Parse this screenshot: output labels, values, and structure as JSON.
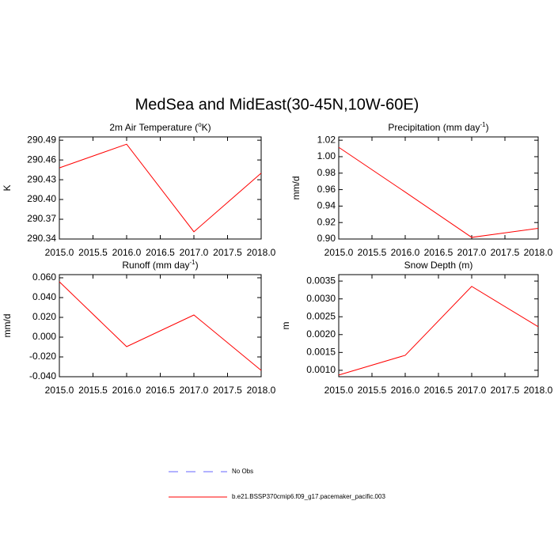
{
  "title": "MedSea and MidEast(30-45N,10W-60E)",
  "legend": [
    {
      "name": "No Obs",
      "color": "#6464ff",
      "dashed": true
    },
    {
      "name": "b.e21.BSSP370cmip6.f09_g17.pacemaker_pacific.003",
      "color": "#ff0000",
      "dashed": false
    }
  ],
  "chart_data": [
    {
      "type": "line",
      "title": [
        "2m Air Temperature (",
        "o",
        "K)"
      ],
      "ylabel": "K",
      "x": [
        2015,
        2016,
        2017,
        2018
      ],
      "values": [
        290.448,
        290.484,
        290.351,
        290.44
      ],
      "color": "#ff0000",
      "xlim": [
        2015,
        2018
      ],
      "ylim": [
        290.34,
        290.495
      ],
      "xticks": [
        {
          "value": 2015,
          "label": "2015.0"
        },
        {
          "value": 2015.5,
          "label": "2015.5"
        },
        {
          "value": 2016,
          "label": "2016.0"
        },
        {
          "value": 2016.5,
          "label": "2016.5"
        },
        {
          "value": 2017,
          "label": "2017.0"
        },
        {
          "value": 2017.5,
          "label": "2017.5"
        },
        {
          "value": 2018,
          "label": "2018.0"
        }
      ],
      "yticks": [
        290.34,
        290.37,
        {
          "value": 290.4,
          "label": "290.40"
        },
        290.43,
        290.46,
        290.49
      ]
    },
    {
      "type": "line",
      "title": [
        "Precipitation (mm day",
        "-1",
        ")"
      ],
      "ylabel": "mm/d",
      "x": [
        2015,
        2016,
        2017,
        2018
      ],
      "values": [
        1.0114,
        0.957,
        0.902,
        0.913
      ],
      "color": "#ff0000",
      "xlim": [
        2015,
        2018
      ],
      "ylim": [
        0.9,
        1.024
      ],
      "xticks": [
        {
          "value": 2015,
          "label": "2015.0"
        },
        {
          "value": 2015.5,
          "label": "2015.5"
        },
        {
          "value": 2016,
          "label": "2016.0"
        },
        {
          "value": 2016.5,
          "label": "2016.5"
        },
        {
          "value": 2017,
          "label": "2017.0"
        },
        {
          "value": 2017.5,
          "label": "2017.5"
        },
        {
          "value": 2018,
          "label": "2018.0"
        }
      ],
      "yticks": [
        {
          "value": 0.9,
          "label": "0.90"
        },
        0.92,
        0.94,
        0.96,
        0.98,
        {
          "value": 1,
          "label": "1.00"
        },
        1.02
      ]
    },
    {
      "type": "line",
      "title": [
        "Runoff (mm day",
        "-1",
        ")"
      ],
      "ylabel": "mm/d",
      "x": [
        2015,
        2016,
        2017,
        2018
      ],
      "values": [
        0.056,
        -0.0096,
        0.0224,
        -0.0336
      ],
      "color": "#ff0000",
      "xlim": [
        2015,
        2018
      ],
      "ylim": [
        -0.04,
        0.0632
      ],
      "xticks": [
        {
          "value": 2015,
          "label": "2015.0"
        },
        {
          "value": 2015.5,
          "label": "2015.5"
        },
        {
          "value": 2016,
          "label": "2016.0"
        },
        {
          "value": 2016.5,
          "label": "2016.5"
        },
        {
          "value": 2017,
          "label": "2017.0"
        },
        {
          "value": 2017.5,
          "label": "2017.5"
        },
        {
          "value": 2018,
          "label": "2018.0"
        }
      ],
      "yticks": [
        {
          "value": -0.04,
          "label": "-0.040"
        },
        {
          "value": -0.02,
          "label": "-0.020"
        },
        {
          "value": 0,
          "label": "0.000"
        },
        {
          "value": 0.02,
          "label": "0.020"
        },
        {
          "value": 0.04,
          "label": "0.040"
        },
        {
          "value": 0.06,
          "label": "0.060"
        }
      ]
    },
    {
      "type": "line",
      "title": [
        "Snow Depth (m)"
      ],
      "ylabel": "m",
      "x": [
        2015,
        2016,
        2017,
        2018
      ],
      "values": [
        0.000867,
        0.00142,
        0.00335,
        0.00222
      ],
      "color": "#ff0000",
      "xlim": [
        2015,
        2018
      ],
      "ylim": [
        0.00082,
        0.00368
      ],
      "xticks": [
        {
          "value": 2015,
          "label": "2015.0"
        },
        {
          "value": 2015.5,
          "label": "2015.5"
        },
        {
          "value": 2016,
          "label": "2016.0"
        },
        {
          "value": 2016.5,
          "label": "2016.5"
        },
        {
          "value": 2017,
          "label": "2017.0"
        },
        {
          "value": 2017.5,
          "label": "2017.5"
        },
        {
          "value": 2018,
          "label": "2018.0"
        }
      ],
      "yticks": [
        {
          "value": 0.001,
          "label": "0.0010"
        },
        {
          "value": 0.0015,
          "label": "0.0015"
        },
        {
          "value": 0.002,
          "label": "0.0020"
        },
        {
          "value": 0.0025,
          "label": "0.0025"
        },
        {
          "value": 0.003,
          "label": "0.0030"
        },
        {
          "value": 0.0035,
          "label": "0.0035"
        }
      ]
    }
  ]
}
